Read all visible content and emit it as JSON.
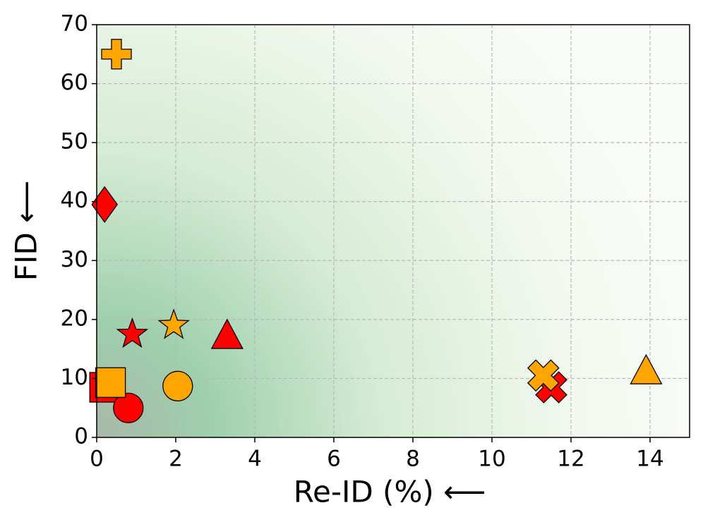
{
  "chart_data": {
    "type": "scatter",
    "xlabel": "Re-ID (%) ⟵",
    "ylabel": "FID ⟵",
    "xlim": [
      0,
      15
    ],
    "xticks": [
      0,
      2,
      4,
      6,
      8,
      10,
      12,
      14
    ],
    "ylim": [
      0,
      70
    ],
    "yticks": [
      0,
      10,
      20,
      30,
      40,
      50,
      60,
      70
    ],
    "grid": true,
    "series": [
      {
        "color": "#ff0000",
        "markers": [
          "diamond",
          "star",
          "triangle",
          "square",
          "circle",
          "x"
        ],
        "x": [
          0.2,
          0.9,
          3.3,
          0.2,
          0.8,
          11.5
        ],
        "values": [
          39.5,
          17.5,
          17,
          8.5,
          5,
          8.5
        ]
      },
      {
        "color": "#ffa500",
        "markers": [
          "plus",
          "star",
          "square",
          "circle",
          "x",
          "triangle"
        ],
        "x": [
          0.5,
          1.95,
          0.35,
          2.05,
          11.3,
          13.9
        ],
        "values": [
          65,
          19,
          9.3,
          8.7,
          10.5,
          11
        ]
      }
    ]
  }
}
